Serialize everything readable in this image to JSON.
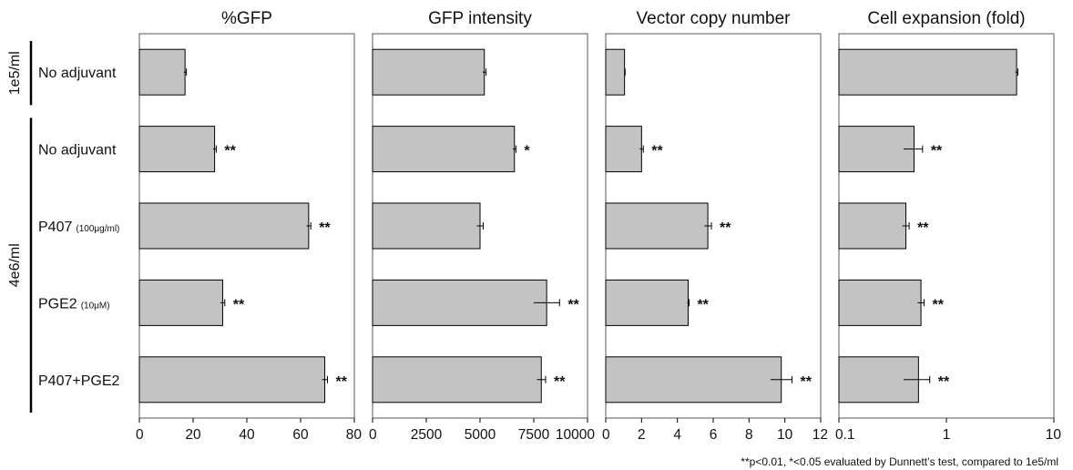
{
  "chart_data": {
    "type": "bar",
    "orientation": "horizontal",
    "groups": [
      {
        "label": "1e5/ml",
        "rows": [
          0
        ]
      },
      {
        "label": "4e6/ml",
        "rows": [
          1,
          2,
          3,
          4
        ]
      }
    ],
    "rows": [
      {
        "label": "No adjuvant",
        "note": ""
      },
      {
        "label": "No adjuvant",
        "note": ""
      },
      {
        "label": "P407",
        "note": "(100μg/ml)"
      },
      {
        "label": "PGE2",
        "note": "(10μM)"
      },
      {
        "label": "P407+PGE2",
        "note": ""
      }
    ],
    "panels": [
      {
        "title": "%GFP",
        "scale": "linear",
        "xlim": [
          0,
          80
        ],
        "ticks": [
          0,
          20,
          40,
          60,
          80
        ],
        "tick_labels": [
          "0",
          "20",
          "40",
          "60",
          "80"
        ],
        "values": [
          17,
          28,
          63,
          31,
          69
        ],
        "errors": [
          0.5,
          0.6,
          0.8,
          0.8,
          1.0
        ],
        "significance": [
          "",
          "**",
          "**",
          "**",
          "**"
        ]
      },
      {
        "title": "GFP intensity",
        "scale": "linear",
        "xlim": [
          0,
          10000
        ],
        "ticks": [
          0,
          2500,
          5000,
          7500,
          10000
        ],
        "tick_labels": [
          "0",
          "2500",
          "5000",
          "7500",
          "10000"
        ],
        "values": [
          5200,
          6600,
          5000,
          8100,
          7850
        ],
        "errors": [
          80,
          70,
          150,
          600,
          200
        ],
        "significance": [
          "",
          "*",
          "",
          "**",
          "**"
        ]
      },
      {
        "title": "Vector copy number",
        "scale": "linear",
        "xlim": [
          0,
          12
        ],
        "ticks": [
          0,
          2,
          4,
          6,
          8,
          10,
          12
        ],
        "tick_labels": [
          "0",
          "2",
          "4",
          "6",
          "8",
          "10",
          "12"
        ],
        "values": [
          1.05,
          2.0,
          5.7,
          4.6,
          9.8
        ],
        "errors": [
          0.03,
          0.1,
          0.2,
          0.05,
          0.6
        ],
        "significance": [
          "",
          "**",
          "**",
          "**",
          "**"
        ]
      },
      {
        "title": "Cell expansion (fold)",
        "scale": "log",
        "xlim": [
          0.1,
          10
        ],
        "ticks": [
          0.1,
          1,
          10
        ],
        "tick_labels": [
          "0.1",
          "1",
          "10"
        ],
        "values": [
          4.5,
          0.5,
          0.42,
          0.58,
          0.55
        ],
        "errors": [
          0.12,
          0.1,
          0.03,
          0.04,
          0.15
        ],
        "significance": [
          "",
          "**",
          "**",
          "**",
          "**"
        ]
      }
    ],
    "footnote": "**p<0.01, *<0.05 evaluated by Dunnett’s test, compared to 1e5/ml",
    "bar_color": "#c3c3c3",
    "grid": false,
    "legend": "none"
  }
}
